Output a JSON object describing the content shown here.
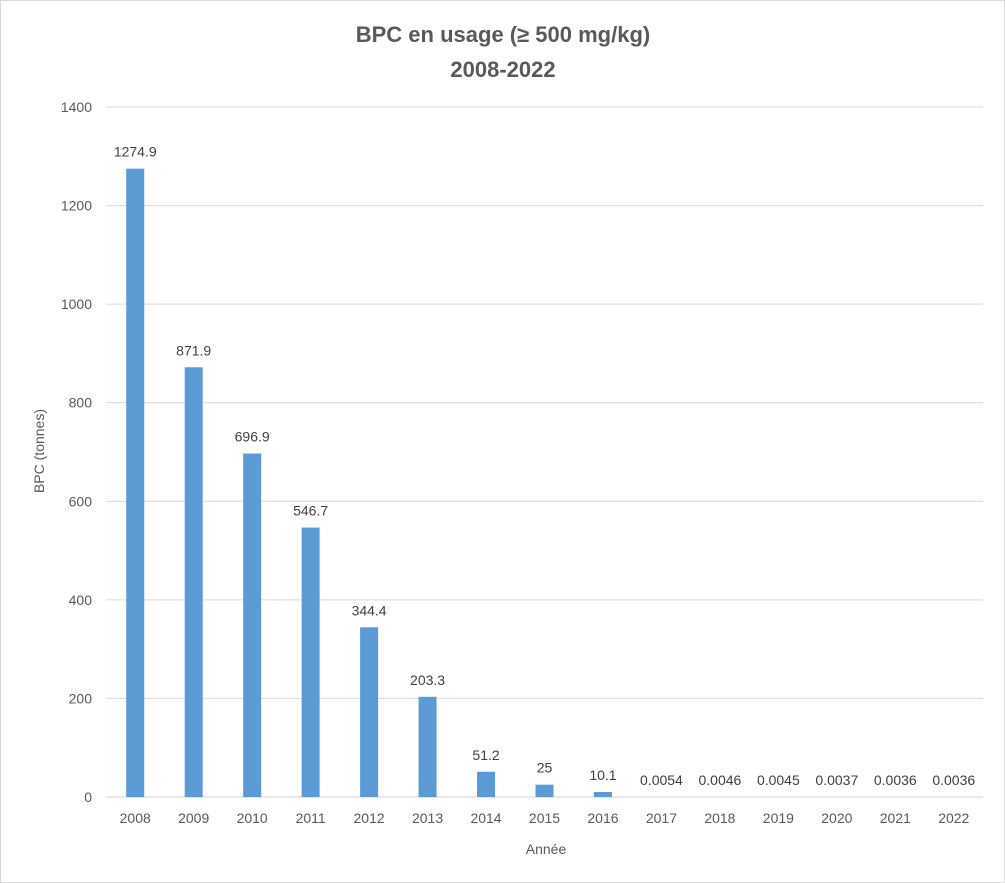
{
  "chart_data": {
    "type": "bar",
    "title": "BPC en usage (≥ 500 mg/kg)",
    "subtitle": "2008-2022",
    "xlabel": "Année",
    "ylabel": "BPC (tonnes)",
    "ylim": [
      0,
      1400
    ],
    "yticks": [
      0,
      200,
      400,
      600,
      800,
      1000,
      1200,
      1400
    ],
    "ytick_labels": [
      "0",
      "200",
      "400",
      "600",
      "800",
      "1000",
      "1200",
      "1400"
    ],
    "grid": true,
    "legend": "none",
    "bar_color": "#5b9bd5",
    "categories": [
      "2008",
      "2009",
      "2010",
      "2011",
      "2012",
      "2013",
      "2014",
      "2015",
      "2016",
      "2017",
      "2018",
      "2019",
      "2020",
      "2021",
      "2022"
    ],
    "values": [
      1274.9,
      871.9,
      696.9,
      546.7,
      344.4,
      203.3,
      51.2,
      25,
      10.1,
      0.0054,
      0.0046,
      0.0045,
      0.0037,
      0.0036,
      0.0036
    ],
    "data_labels": [
      "1274.9",
      "871.9",
      "696.9",
      "546.7",
      "344.4",
      "203.3",
      "51.2",
      "25",
      "10.1",
      "0.0054",
      "0.0046",
      "0.0045",
      "0.0037",
      "0.0036",
      "0.0036"
    ]
  }
}
